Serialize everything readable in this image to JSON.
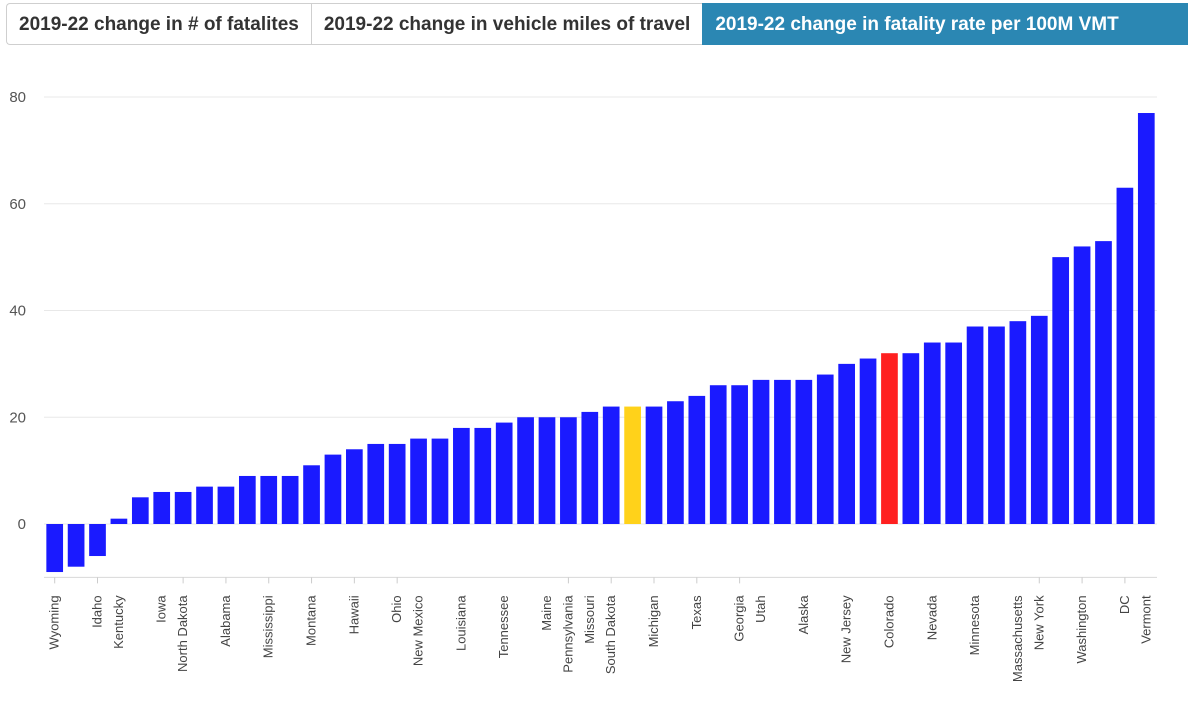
{
  "tabs": [
    {
      "label": "2019-22 change in # of fatalites",
      "active": false
    },
    {
      "label": "2019-22 change in vehicle miles of travel",
      "active": false
    },
    {
      "label": "2019-22 change in fatality rate per 100M VMT",
      "active": true
    }
  ],
  "colors": {
    "default_bar": "#1a1aff",
    "highlight_yellow": "#ffd21a",
    "highlight_red": "#ff2020",
    "grid": "#e8e8e8",
    "tab_active_bg": "#2b87b3"
  },
  "chart_data": {
    "type": "bar",
    "title": "",
    "xlabel": "",
    "ylabel": "",
    "ylim": [
      -10,
      80
    ],
    "yticks": [
      0,
      20,
      40,
      60,
      80
    ],
    "grid": true,
    "categories": [
      "Wyoming",
      "",
      "Idaho",
      "Kentucky",
      "",
      "Iowa",
      "North Dakota",
      "",
      "Alabama",
      "",
      "Mississippi",
      "",
      "Montana",
      "",
      "Hawaii",
      "",
      "Ohio",
      "New Mexico",
      "",
      "Louisiana",
      "",
      "Tennessee",
      "",
      "Maine",
      "Pennsylvania",
      "Missouri",
      "South Dakota",
      "",
      "Michigan",
      "",
      "Texas",
      "",
      "Georgia",
      "Utah",
      "",
      "Alaska",
      "",
      "New Jersey",
      "",
      "Colorado",
      "",
      "Nevada",
      "",
      "Minnesota",
      "",
      "Massachusetts",
      "New York",
      "",
      "Washington",
      "",
      "DC",
      "Vermont"
    ],
    "values": [
      -9,
      -8,
      -6,
      1,
      5,
      6,
      6,
      7,
      7,
      9,
      9,
      9,
      11,
      13,
      14,
      15,
      15,
      16,
      16,
      18,
      18,
      19,
      20,
      20,
      20,
      21,
      22,
      22,
      22,
      23,
      24,
      26,
      26,
      27,
      27,
      27,
      28,
      30,
      31,
      32,
      32,
      34,
      34,
      37,
      37,
      38,
      39,
      50,
      52,
      53,
      63,
      77
    ],
    "highlights": {
      "27": "highlight_yellow",
      "39": "highlight_red"
    }
  }
}
